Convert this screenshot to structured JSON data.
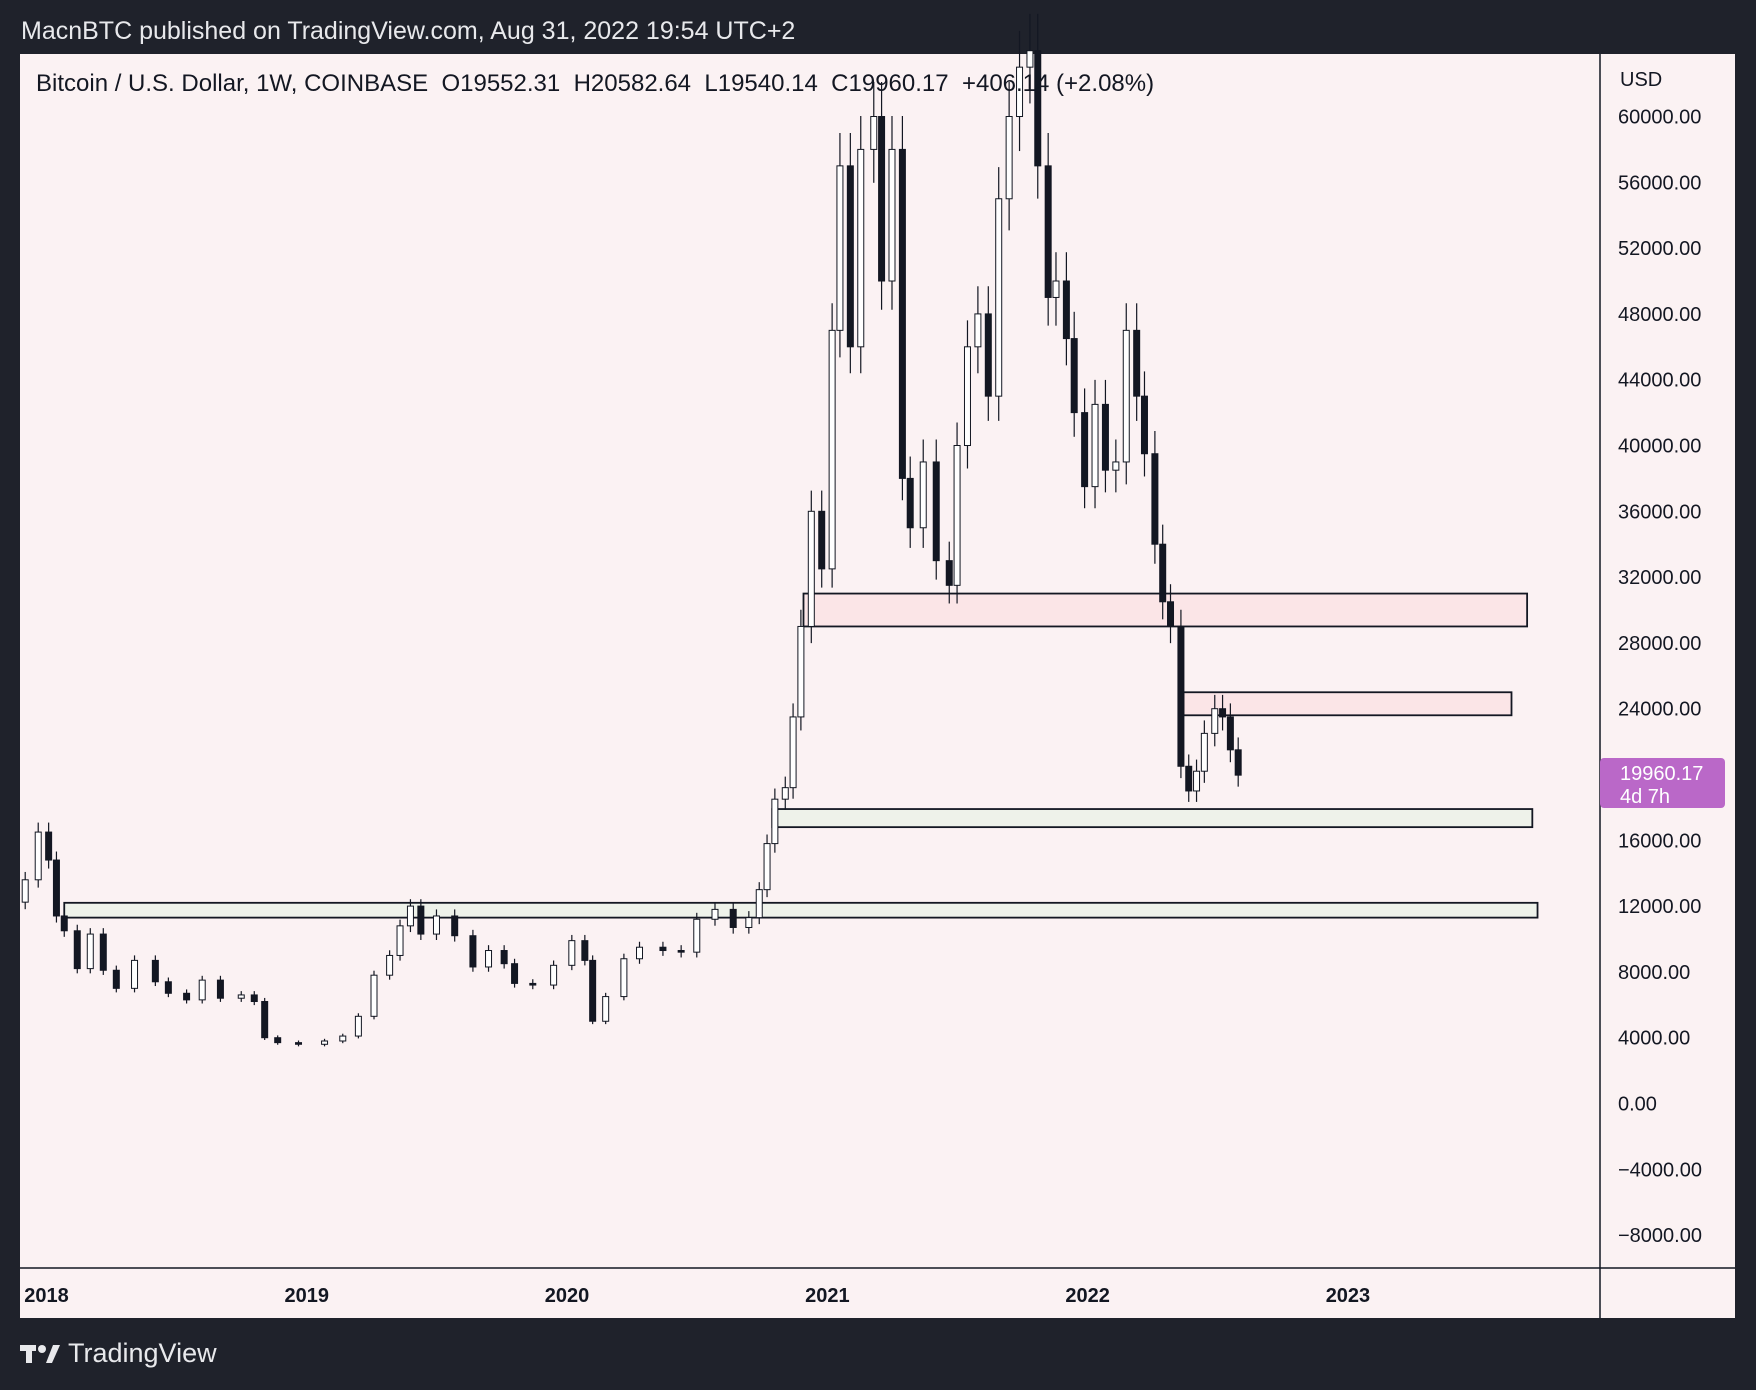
{
  "header": {
    "published_by": "MacnBTC published on TradingView.com, Aug 31, 2022 19:54 UTC+2"
  },
  "legend": {
    "symbol": "Bitcoin / U.S. Dollar, 1W, COINBASE",
    "open": "O19552.31",
    "high": "H20582.64",
    "low": "L19540.14",
    "close": "C19960.17",
    "change": "+406.14 (+2.08%)"
  },
  "price_tag": {
    "price": "19960.17",
    "countdown": "4d 7h",
    "color": "#ba68c8"
  },
  "footer": {
    "brand": "TradingView",
    "logo_icon": "tradingview-logo-icon"
  },
  "colors": {
    "frame_bg": "#1f222b",
    "chart_bg": "#fbf2f3",
    "zone_red_fill": "#fbe5e7",
    "zone_green_fill": "#eef2ea",
    "candle": "#131722"
  },
  "chart_data": {
    "type": "candlestick",
    "timeframe": "1W",
    "y_axis": {
      "unit_label": "USD",
      "ticks": [
        60000,
        56000,
        52000,
        48000,
        44000,
        40000,
        36000,
        32000,
        28000,
        24000,
        16000,
        12000,
        8000,
        4000,
        0,
        -4000,
        -8000
      ],
      "tick_labels": [
        "60000.00",
        "56000.00",
        "52000.00",
        "48000.00",
        "44000.00",
        "40000.00",
        "36000.00",
        "32000.00",
        "28000.00",
        "24000.00",
        "16000.00",
        "12000.00",
        "8000.00",
        "4000.00",
        "0.00",
        "−4000.00",
        "−8000.00"
      ],
      "range": [
        -10000,
        63800
      ]
    },
    "x_axis": {
      "ticks": [
        "2018",
        "2019",
        "2020",
        "2021",
        "2022",
        "2023"
      ],
      "range": [
        2017.98,
        2024.05
      ]
    },
    "zones": [
      {
        "kind": "resistance",
        "color": "red",
        "x_start": 2020.99,
        "x_end": 2023.77,
        "low": 29000,
        "high": 31000
      },
      {
        "kind": "resistance",
        "color": "red",
        "x_start": 2022.45,
        "x_end": 2023.71,
        "low": 23600,
        "high": 25000
      },
      {
        "kind": "support",
        "color": "green",
        "x_start": 2020.87,
        "x_end": 2023.79,
        "low": 16800,
        "high": 17900
      },
      {
        "kind": "support",
        "color": "green",
        "x_start": 2018.15,
        "x_end": 2023.81,
        "low": 11300,
        "high": 12200
      }
    ],
    "series": [
      {
        "x": 2018.0,
        "close": 13600
      },
      {
        "x": 2018.05,
        "close": 16500
      },
      {
        "x": 2018.09,
        "close": 14800
      },
      {
        "x": 2018.12,
        "close": 11400
      },
      {
        "x": 2018.15,
        "close": 10500
      },
      {
        "x": 2018.2,
        "close": 8200
      },
      {
        "x": 2018.25,
        "close": 10300
      },
      {
        "x": 2018.3,
        "close": 8100
      },
      {
        "x": 2018.35,
        "close": 7000
      },
      {
        "x": 2018.42,
        "close": 8700
      },
      {
        "x": 2018.5,
        "close": 7400
      },
      {
        "x": 2018.55,
        "close": 6700
      },
      {
        "x": 2018.62,
        "close": 6300
      },
      {
        "x": 2018.68,
        "close": 7500
      },
      {
        "x": 2018.75,
        "close": 6400
      },
      {
        "x": 2018.83,
        "close": 6600
      },
      {
        "x": 2018.88,
        "close": 6200
      },
      {
        "x": 2018.92,
        "close": 4000
      },
      {
        "x": 2018.97,
        "close": 3700
      },
      {
        "x": 2019.05,
        "close": 3600
      },
      {
        "x": 2019.15,
        "close": 3800
      },
      {
        "x": 2019.22,
        "close": 4100
      },
      {
        "x": 2019.28,
        "close": 5300
      },
      {
        "x": 2019.34,
        "close": 7800
      },
      {
        "x": 2019.4,
        "close": 9000
      },
      {
        "x": 2019.44,
        "close": 10800
      },
      {
        "x": 2019.48,
        "close": 12000
      },
      {
        "x": 2019.52,
        "close": 10300
      },
      {
        "x": 2019.58,
        "close": 11400
      },
      {
        "x": 2019.65,
        "close": 10200
      },
      {
        "x": 2019.72,
        "close": 8300
      },
      {
        "x": 2019.78,
        "close": 9300
      },
      {
        "x": 2019.84,
        "close": 8500
      },
      {
        "x": 2019.88,
        "close": 7300
      },
      {
        "x": 2019.95,
        "close": 7200
      },
      {
        "x": 2020.03,
        "close": 8400
      },
      {
        "x": 2020.1,
        "close": 9900
      },
      {
        "x": 2020.15,
        "close": 8700
      },
      {
        "x": 2020.18,
        "close": 5000
      },
      {
        "x": 2020.23,
        "close": 6500
      },
      {
        "x": 2020.3,
        "close": 8800
      },
      {
        "x": 2020.36,
        "close": 9500
      },
      {
        "x": 2020.45,
        "close": 9300
      },
      {
        "x": 2020.52,
        "close": 9200
      },
      {
        "x": 2020.58,
        "close": 11200
      },
      {
        "x": 2020.65,
        "close": 11800
      },
      {
        "x": 2020.72,
        "close": 10700
      },
      {
        "x": 2020.78,
        "close": 11300
      },
      {
        "x": 2020.82,
        "close": 13000
      },
      {
        "x": 2020.85,
        "close": 15800
      },
      {
        "x": 2020.88,
        "close": 18500
      },
      {
        "x": 2020.92,
        "close": 19200
      },
      {
        "x": 2020.95,
        "close": 23500
      },
      {
        "x": 2020.98,
        "close": 29000
      },
      {
        "x": 2021.02,
        "close": 36000
      },
      {
        "x": 2021.06,
        "close": 32500
      },
      {
        "x": 2021.1,
        "close": 47000
      },
      {
        "x": 2021.13,
        "close": 57000
      },
      {
        "x": 2021.17,
        "close": 46000
      },
      {
        "x": 2021.21,
        "close": 58000
      },
      {
        "x": 2021.26,
        "close": 60000
      },
      {
        "x": 2021.29,
        "close": 50000
      },
      {
        "x": 2021.33,
        "close": 58000
      },
      {
        "x": 2021.37,
        "close": 38000
      },
      {
        "x": 2021.4,
        "close": 35000
      },
      {
        "x": 2021.45,
        "close": 39000
      },
      {
        "x": 2021.5,
        "close": 33000
      },
      {
        "x": 2021.55,
        "close": 31500
      },
      {
        "x": 2021.58,
        "close": 40000
      },
      {
        "x": 2021.62,
        "close": 46000
      },
      {
        "x": 2021.66,
        "close": 48000
      },
      {
        "x": 2021.7,
        "close": 43000
      },
      {
        "x": 2021.74,
        "close": 55000
      },
      {
        "x": 2021.78,
        "close": 60000
      },
      {
        "x": 2021.82,
        "close": 63000
      },
      {
        "x": 2021.86,
        "close": 64000
      },
      {
        "x": 2021.89,
        "close": 57000
      },
      {
        "x": 2021.93,
        "close": 49000
      },
      {
        "x": 2021.96,
        "close": 50000
      },
      {
        "x": 2022.0,
        "close": 46500
      },
      {
        "x": 2022.03,
        "close": 42000
      },
      {
        "x": 2022.07,
        "close": 37500
      },
      {
        "x": 2022.11,
        "close": 42500
      },
      {
        "x": 2022.15,
        "close": 38500
      },
      {
        "x": 2022.19,
        "close": 39000
      },
      {
        "x": 2022.23,
        "close": 47000
      },
      {
        "x": 2022.27,
        "close": 43000
      },
      {
        "x": 2022.3,
        "close": 39500
      },
      {
        "x": 2022.34,
        "close": 34000
      },
      {
        "x": 2022.37,
        "close": 30500
      },
      {
        "x": 2022.4,
        "close": 29000
      },
      {
        "x": 2022.44,
        "close": 20500
      },
      {
        "x": 2022.47,
        "close": 19000
      },
      {
        "x": 2022.5,
        "close": 20200
      },
      {
        "x": 2022.53,
        "close": 22500
      },
      {
        "x": 2022.57,
        "close": 24000
      },
      {
        "x": 2022.6,
        "close": 23500
      },
      {
        "x": 2022.63,
        "close": 21500
      },
      {
        "x": 2022.66,
        "close": 19960.17
      }
    ]
  }
}
